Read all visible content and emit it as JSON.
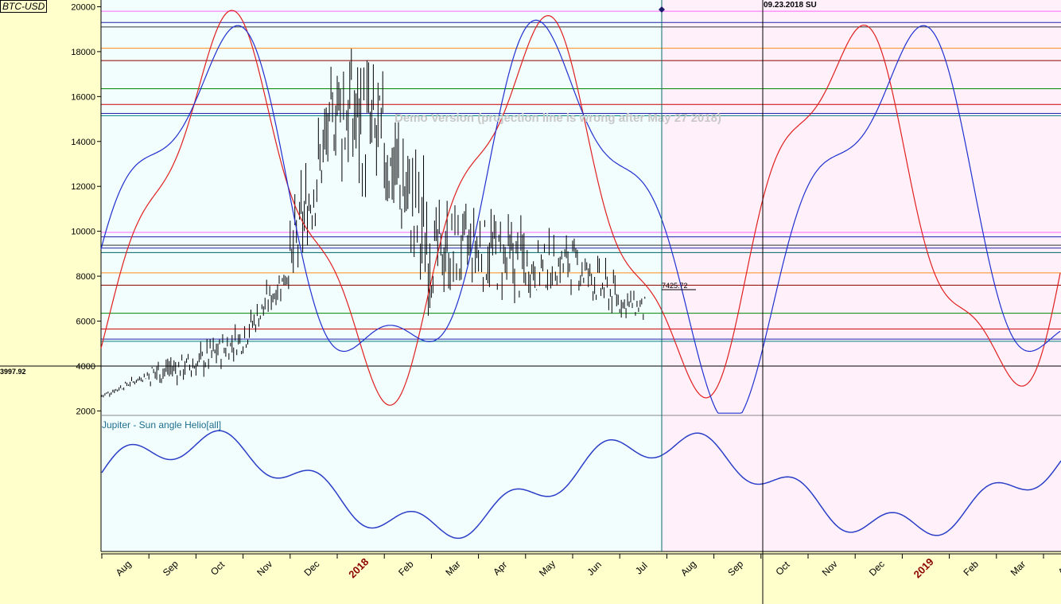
{
  "symbol": "BTC-USD",
  "watermark": "Demo Version (projection line is wrong after May 27 2018)",
  "date_marker": "09.23.2018 SU",
  "left_price": "3997.92",
  "projection_value": "7425.72",
  "indicator_label": "Jupiter - Sun angle Helio[all]",
  "colors": {
    "background": "#ffffcc",
    "past_zone": "#f2fdfd",
    "future_zone": "#fff0fa",
    "projection_red": "#e02020",
    "projection_blue": "#2030d0",
    "indicator": "#2a3ec8",
    "bars": "#000000"
  },
  "chart_data": [
    {
      "type": "line",
      "title": "BTC-USD",
      "ylim": [
        1800,
        20300
      ],
      "yticks": [
        "2000",
        "4000",
        "6000",
        "8000",
        "10000",
        "12000",
        "14000",
        "16000",
        "18000",
        "20000"
      ],
      "xticks": [
        {
          "label": "Aug",
          "year": false
        },
        {
          "label": "Sep",
          "year": false
        },
        {
          "label": "Oct",
          "year": false
        },
        {
          "label": "Nov",
          "year": false
        },
        {
          "label": "Dec",
          "year": false
        },
        {
          "label": "2018",
          "year": true
        },
        {
          "label": "Feb",
          "year": false
        },
        {
          "label": "Mar",
          "year": false
        },
        {
          "label": "Apr",
          "year": false
        },
        {
          "label": "May",
          "year": false
        },
        {
          "label": "Jun",
          "year": false
        },
        {
          "label": "Jul",
          "year": false
        },
        {
          "label": "Aug",
          "year": false
        },
        {
          "label": "Sep",
          "year": false
        },
        {
          "label": "Oct",
          "year": false
        },
        {
          "label": "Nov",
          "year": false
        },
        {
          "label": "Dec",
          "year": false
        },
        {
          "label": "2019",
          "year": true
        },
        {
          "label": "Feb",
          "year": false
        },
        {
          "label": "Mar",
          "year": false
        },
        {
          "label": "Apr",
          "year": false
        }
      ],
      "levels": [
        {
          "value": 19800,
          "color": "#ff66ff"
        },
        {
          "value": 19300,
          "color": "#2222aa"
        },
        {
          "value": 19100,
          "color": "#333333"
        },
        {
          "value": 18150,
          "color": "#ff8c1a"
        },
        {
          "value": 17600,
          "color": "#8b0000"
        },
        {
          "value": 16350,
          "color": "#008800"
        },
        {
          "value": 15650,
          "color": "#cc0000"
        },
        {
          "value": 15250,
          "color": "#2222aa"
        },
        {
          "value": 15150,
          "color": "#008080"
        },
        {
          "value": 9950,
          "color": "#ff66ff"
        },
        {
          "value": 9750,
          "color": "#2222aa"
        },
        {
          "value": 9380,
          "color": "#333333"
        },
        {
          "value": 9250,
          "color": "#2222aa"
        },
        {
          "value": 9050,
          "color": "#006666"
        },
        {
          "value": 8150,
          "color": "#ff8c1a"
        },
        {
          "value": 7600,
          "color": "#8b0000"
        },
        {
          "value": 6350,
          "color": "#008800"
        },
        {
          "value": 5650,
          "color": "#cc0000"
        },
        {
          "value": 5200,
          "color": "#2222aa"
        },
        {
          "value": 5100,
          "color": "#008080"
        },
        {
          "value": 3997.92,
          "color": "#000000"
        }
      ],
      "price_ohlc_daily_approx": [
        {
          "month": "Jul 2017",
          "low": 2400,
          "high": 2900
        },
        {
          "month": "Aug 2017",
          "low": 2700,
          "high": 4500
        },
        {
          "month": "Sep 2017",
          "low": 3000,
          "high": 5000
        },
        {
          "month": "Oct 2017",
          "low": 4200,
          "high": 6200
        },
        {
          "month": "Nov 2017",
          "low": 5500,
          "high": 11000
        },
        {
          "month": "Dec 2017",
          "low": 11000,
          "high": 19800
        },
        {
          "month": "Jan 2018",
          "low": 9500,
          "high": 17200
        },
        {
          "month": "Feb 2018",
          "low": 6000,
          "high": 11500
        },
        {
          "month": "Mar 2018",
          "low": 6600,
          "high": 11600
        },
        {
          "month": "Apr 2018",
          "low": 6600,
          "high": 9800
        },
        {
          "month": "May 2018",
          "low": 7200,
          "high": 9900
        },
        {
          "month": "Jun 2018",
          "low": 5900,
          "high": 7700
        },
        {
          "month": "Jul 2018",
          "low": 5800,
          "high": 6800
        }
      ],
      "series": [
        {
          "color": "#e02020"
        },
        {
          "color": "#2030d0"
        },
        {
          "color": "#2a3ec8"
        }
      ]
    }
  ]
}
